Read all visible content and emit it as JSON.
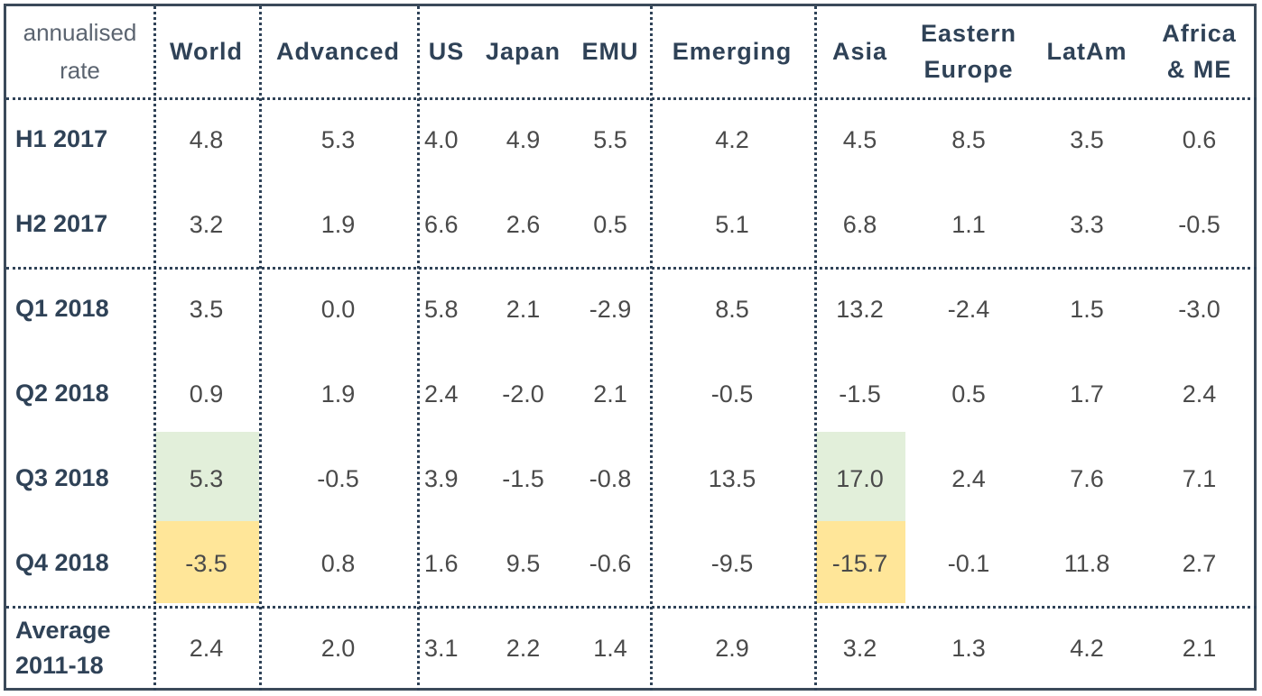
{
  "chart_data": {
    "type": "table",
    "corner_label": "annualised rate",
    "columns": [
      "World",
      "Advanced",
      "US",
      "Japan",
      "EMU",
      "Emerging",
      "Asia",
      "Eastern Europe",
      "LatAm",
      "Africa & ME"
    ],
    "rows": [
      {
        "label": "H1 2017",
        "values": [
          "4.8",
          "5.3",
          "4.0",
          "4.9",
          "5.5",
          "4.2",
          "4.5",
          "8.5",
          "3.5",
          "0.6"
        ]
      },
      {
        "label": "H2 2017",
        "values": [
          "3.2",
          "1.9",
          "6.6",
          "2.6",
          "0.5",
          "5.1",
          "6.8",
          "1.1",
          "3.3",
          "-0.5"
        ]
      },
      {
        "label": "Q1 2018",
        "values": [
          "3.5",
          "0.0",
          "5.8",
          "2.1",
          "-2.9",
          "8.5",
          "13.2",
          "-2.4",
          "1.5",
          "-3.0"
        ]
      },
      {
        "label": "Q2 2018",
        "values": [
          "0.9",
          "1.9",
          "2.4",
          "-2.0",
          "2.1",
          "-0.5",
          "-1.5",
          "0.5",
          "1.7",
          "2.4"
        ]
      },
      {
        "label": "Q3 2018",
        "values": [
          "5.3",
          "-0.5",
          "3.9",
          "-1.5",
          "-0.8",
          "13.5",
          "17.0",
          "2.4",
          "7.6",
          "7.1"
        ]
      },
      {
        "label": "Q4 2018",
        "values": [
          "-3.5",
          "0.8",
          "1.6",
          "9.5",
          "-0.6",
          "-9.5",
          "-15.7",
          "-0.1",
          "11.8",
          "2.7"
        ]
      },
      {
        "label": "Average 2011-18",
        "values": [
          "2.4",
          "2.0",
          "3.1",
          "2.2",
          "1.4",
          "2.9",
          "3.2",
          "1.3",
          "4.2",
          "2.1"
        ]
      }
    ],
    "highlights": [
      {
        "row": 4,
        "col": 0,
        "color": "#e2efda"
      },
      {
        "row": 5,
        "col": 0,
        "color": "#ffe699"
      },
      {
        "row": 4,
        "col": 6,
        "color": "#e2efda"
      },
      {
        "row": 5,
        "col": 6,
        "color": "#ffe699"
      }
    ]
  }
}
